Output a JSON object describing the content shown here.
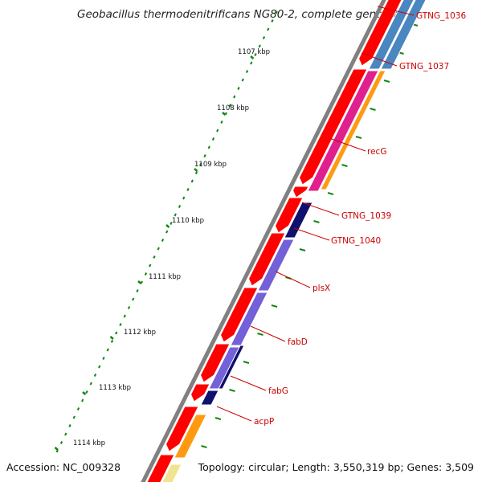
{
  "header": {
    "title": "Geobacillus thermodenitrificans NG80-2, complete genome"
  },
  "footer": {
    "accession": "Accession: NC_009328",
    "summary": "Topology: circular; Length: 3,550,319 bp; Genes: 3,509"
  },
  "ruler": {
    "labels": [
      "1107 kbp",
      "1108 kbp",
      "1109 kbp",
      "1110 kbp",
      "1111 kbp",
      "1112 kbp",
      "1113 kbp",
      "1114 kbp"
    ]
  },
  "genes": [
    {
      "name": "GTNG_1036"
    },
    {
      "name": "GTNG_1037"
    },
    {
      "name": "recG"
    },
    {
      "name": "GTNG_1039"
    },
    {
      "name": "GTNG_1040"
    },
    {
      "name": "plsX"
    },
    {
      "name": "fabD"
    },
    {
      "name": "fabG"
    },
    {
      "name": "acpP"
    }
  ],
  "colors": {
    "backbone": "#808080",
    "forward_strand": "#ff0000",
    "label": "#cc0000",
    "tick": "#118811",
    "cog_steelblue": "#4a86c0",
    "cog_magenta": "#e0208c",
    "cog_orange": "#ff9a10",
    "cog_navy": "#10106e",
    "cog_slateblue": "#7460d8",
    "cog_khaki": "#f0e490"
  }
}
